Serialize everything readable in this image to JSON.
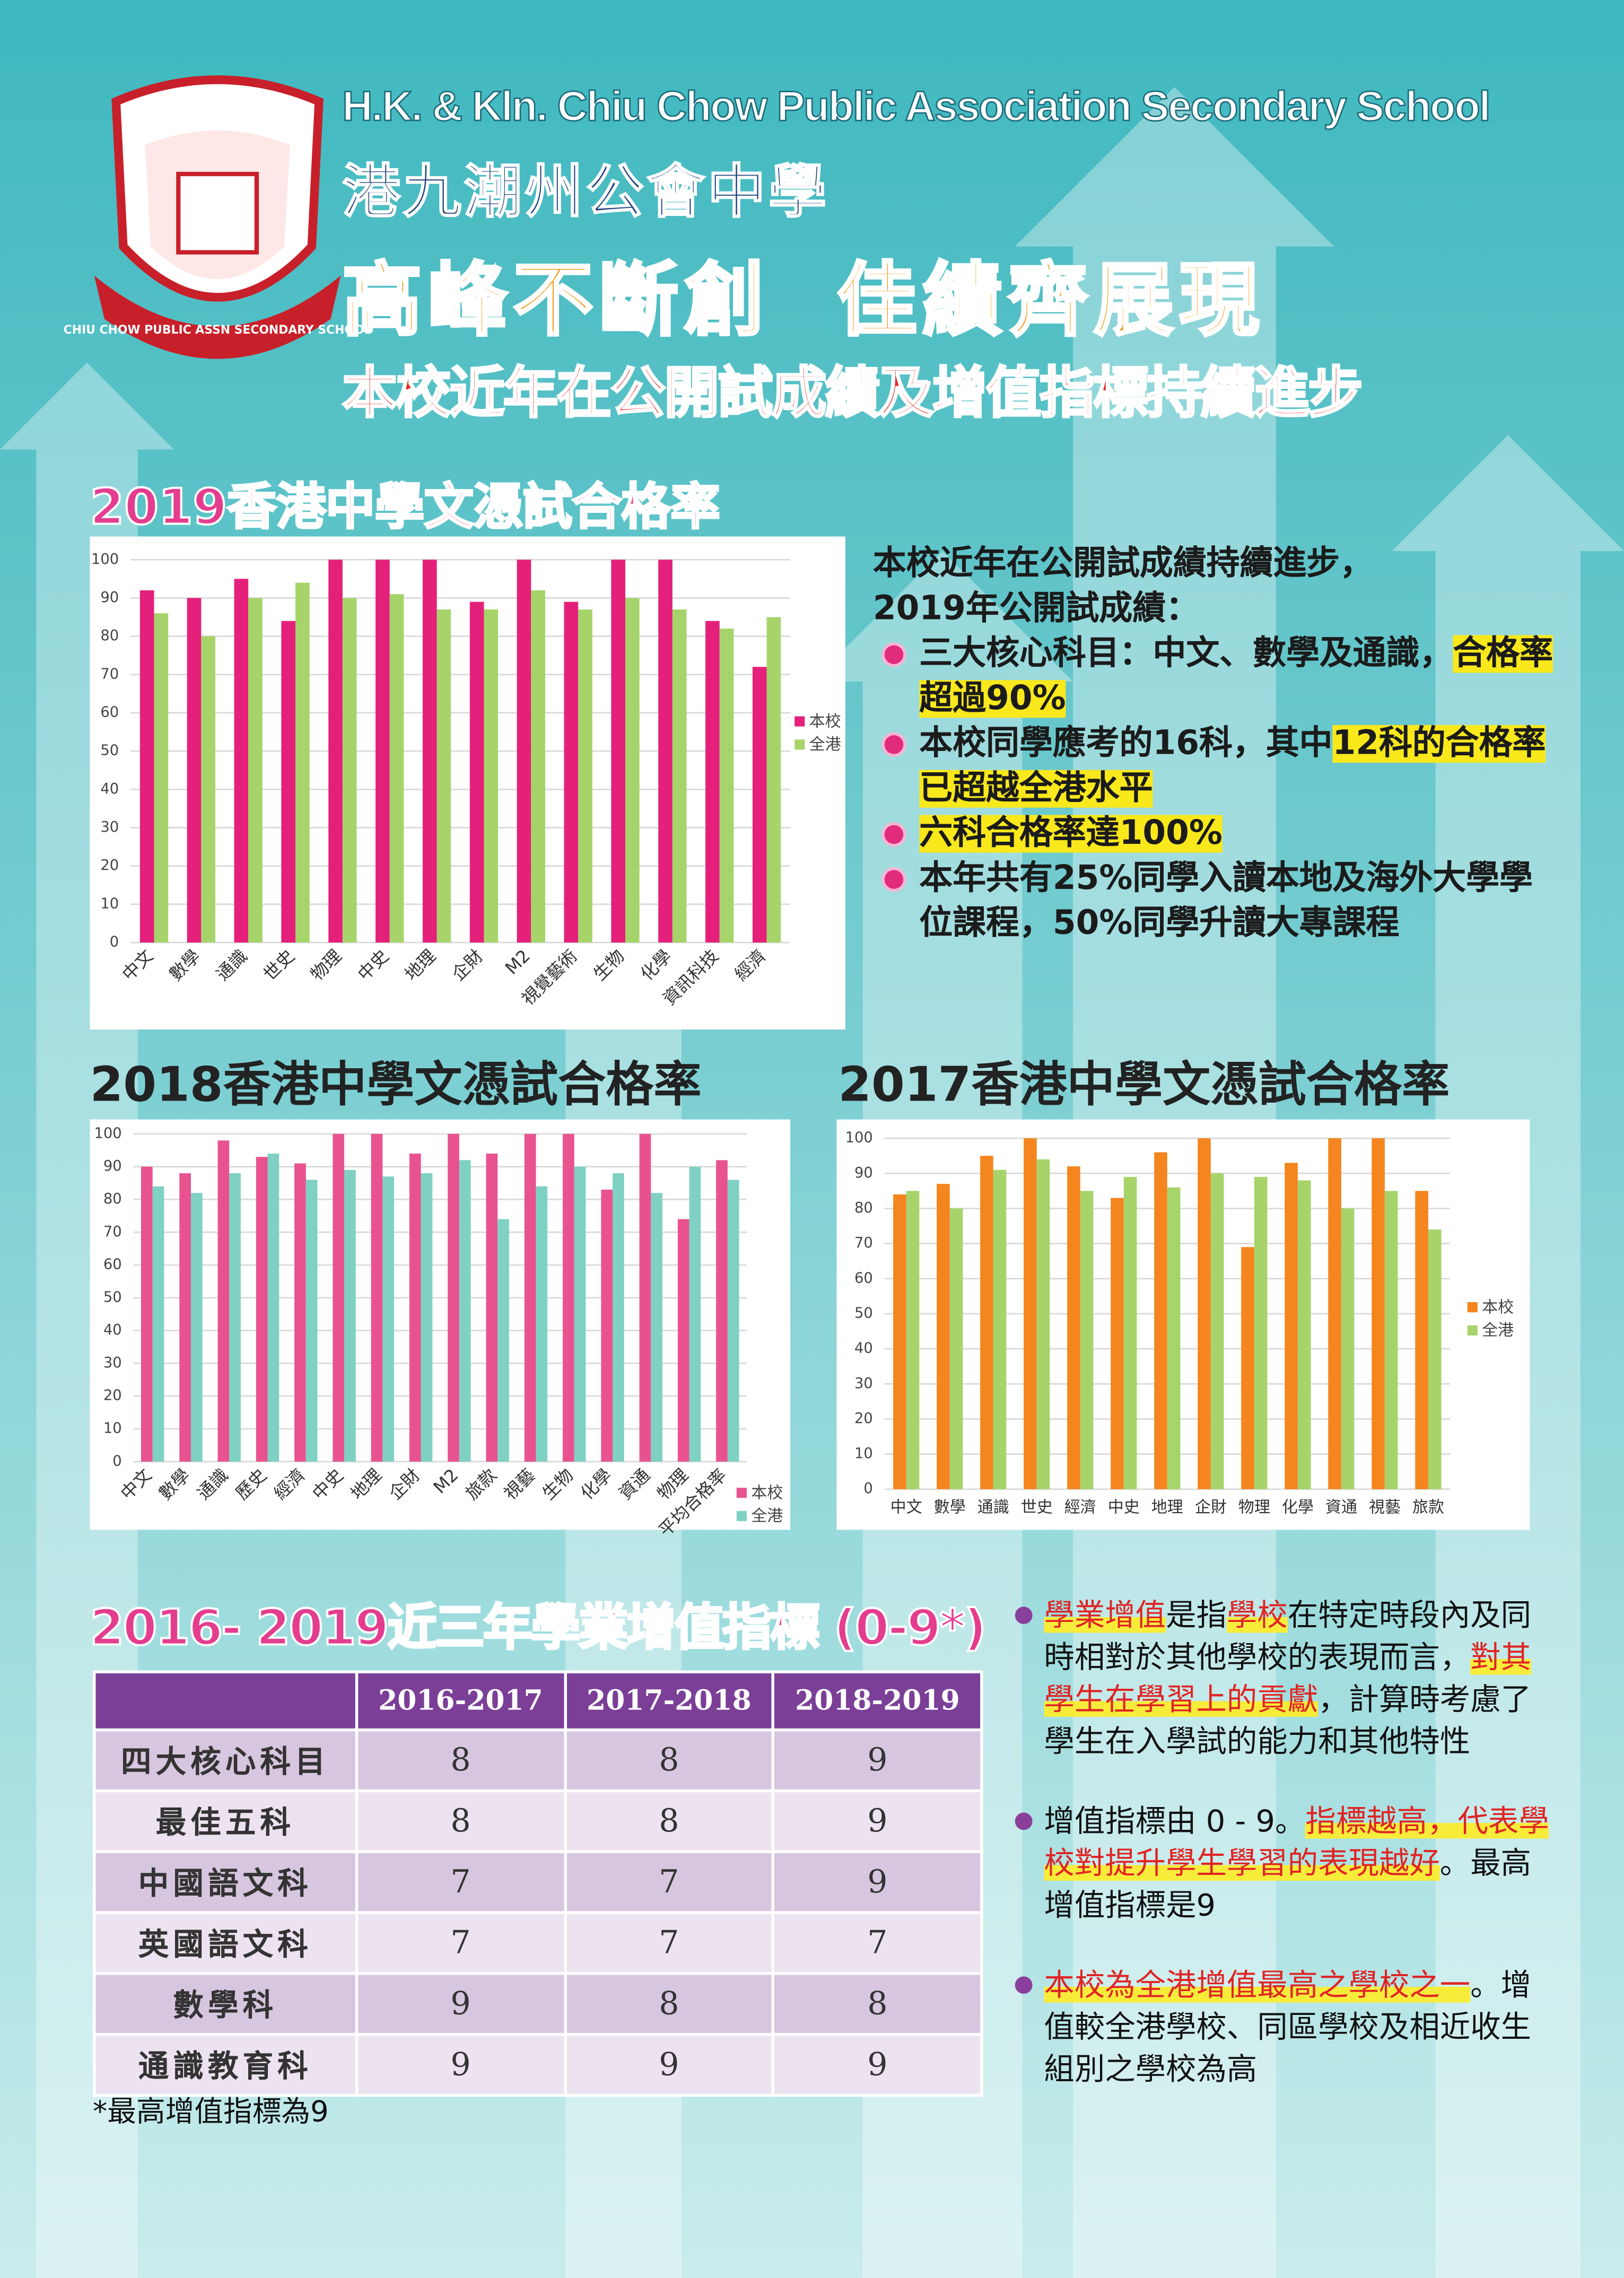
{
  "header": {
    "english_name": "H.K. & Kln. Chiu Chow Public Association Secondary School",
    "chinese_name": "港九潮州公會中學",
    "slogan": "高峰不斷創  佳績齊展現",
    "subtitle": "本校近年在公開試成績及增值指標持續進步",
    "logo_text": "CHIU CHOW PUBLIC ASSN SECONDARY SCHOOL"
  },
  "chart_data": [
    {
      "type": "bar",
      "title": "2019香港中學文憑試合格率",
      "categories": [
        "中文",
        "數學",
        "通識",
        "世史",
        "物理",
        "中史",
        "地理",
        "企財",
        "M2",
        "視覺藝術",
        "生物",
        "化學",
        "資訊科技",
        "經濟"
      ],
      "series": [
        {
          "name": "本校",
          "color": "#e4207a",
          "values": [
            92,
            90,
            95,
            84,
            100,
            100,
            100,
            89,
            100,
            89,
            100,
            100,
            84,
            72
          ]
        },
        {
          "name": "全港",
          "color": "#a6d46a",
          "values": [
            86,
            80,
            90,
            94,
            90,
            91,
            87,
            87,
            92,
            87,
            90,
            87,
            82,
            85
          ]
        }
      ],
      "ylim": [
        0,
        100
      ],
      "yticks": [
        0,
        10,
        20,
        30,
        40,
        50,
        60,
        70,
        80,
        90,
        100
      ],
      "grid": true,
      "legend": "right"
    },
    {
      "type": "bar",
      "title": "2018香港中學文憑試合格率",
      "categories": [
        "中文",
        "數學",
        "通識",
        "歷史",
        "經濟",
        "中史",
        "地理",
        "企財",
        "M2",
        "旅款",
        "視藝",
        "生物",
        "化學",
        "資通",
        "物理",
        "平均合格率"
      ],
      "series": [
        {
          "name": "本校",
          "color": "#e8538f",
          "values": [
            90,
            88,
            98,
            93,
            91,
            100,
            100,
            94,
            100,
            94,
            100,
            100,
            83,
            100,
            74,
            92
          ]
        },
        {
          "name": "全港",
          "color": "#7fd1c3",
          "values": [
            84,
            82,
            88,
            94,
            86,
            89,
            87,
            88,
            92,
            74,
            84,
            90,
            88,
            82,
            90,
            86
          ]
        }
      ],
      "ylim": [
        0,
        100
      ],
      "yticks": [
        0,
        10,
        20,
        30,
        40,
        50,
        60,
        70,
        80,
        90,
        100
      ],
      "grid": true,
      "legend": "bottom right"
    },
    {
      "type": "bar",
      "title": "2017香港中學文憑試合格率",
      "categories": [
        "中文",
        "數學",
        "通識",
        "世史",
        "經濟",
        "中史",
        "地理",
        "企財",
        "物理",
        "化學",
        "資通",
        "視藝",
        "旅款"
      ],
      "series": [
        {
          "name": "本校",
          "color": "#f5851f",
          "values": [
            84,
            87,
            95,
            100,
            92,
            83,
            96,
            100,
            69,
            93,
            100,
            100,
            85
          ]
        },
        {
          "name": "全港",
          "color": "#a6d46a",
          "values": [
            85,
            80,
            91,
            94,
            85,
            89,
            86,
            90,
            89,
            88,
            80,
            85,
            74
          ]
        }
      ],
      "ylim": [
        0,
        100
      ],
      "yticks": [
        0,
        10,
        20,
        30,
        40,
        50,
        60,
        70,
        80,
        90,
        100
      ],
      "grid": true,
      "legend": "right"
    }
  ],
  "summary": {
    "lines": [
      "本校近年在公開試成績持續進步，",
      "2019年公開試成績："
    ],
    "bullets": [
      [
        {
          "text": "三大核心科目：中文、數學及通識，"
        },
        {
          "text": "合格率超過90%",
          "highlight": true
        }
      ],
      [
        {
          "text": "本校同學應考的16科，其中"
        },
        {
          "text": "12科的合格率已超越全港水平",
          "highlight": true
        }
      ],
      [
        {
          "text": "六科合格率達100%",
          "highlight": true
        }
      ],
      [
        {
          "text": "本年共有25%同學入讀本地及海外大學學位課程，50%同學升讀大專課程"
        }
      ]
    ]
  },
  "table": {
    "title": "2016- 2019近三年學業增值指標 (0-9*)",
    "header": [
      "2016-2017",
      "2017-2018",
      "2018-2019"
    ],
    "rows": [
      [
        "四大核心科目",
        8,
        8,
        9
      ],
      [
        "最佳五科",
        8,
        8,
        9
      ],
      [
        "中國語文科",
        7,
        7,
        9
      ],
      [
        "英國語文科",
        7,
        7,
        7
      ],
      [
        "數學科",
        9,
        8,
        8
      ],
      [
        "通識教育科",
        9,
        9,
        9
      ]
    ],
    "footnote": "*最高增值指標為9"
  },
  "notes": [
    [
      {
        "text": "學業增值",
        "em": true
      },
      {
        "text": "是指"
      },
      {
        "text": "學校",
        "em": true
      },
      {
        "text": "在特定時段內及同時相對於其他學校的表現而言，"
      },
      {
        "text": "對其學生在學習上的貢獻",
        "em": true
      },
      {
        "text": "，計算時考慮了學生在入學試的能力和其他特性"
      }
    ],
    [
      {
        "text": "增值指標由 0 - 9。"
      },
      {
        "text": "指標越高，代表學校對提升學生學習的表現越好",
        "em": true
      },
      {
        "text": "。最高增值指標是9"
      }
    ],
    [
      {
        "text": "本校為全港增值最高之學校之一",
        "em": true
      },
      {
        "text": "。增值較全港學校、同區學校及相近收生組別之學校為高"
      }
    ]
  ]
}
